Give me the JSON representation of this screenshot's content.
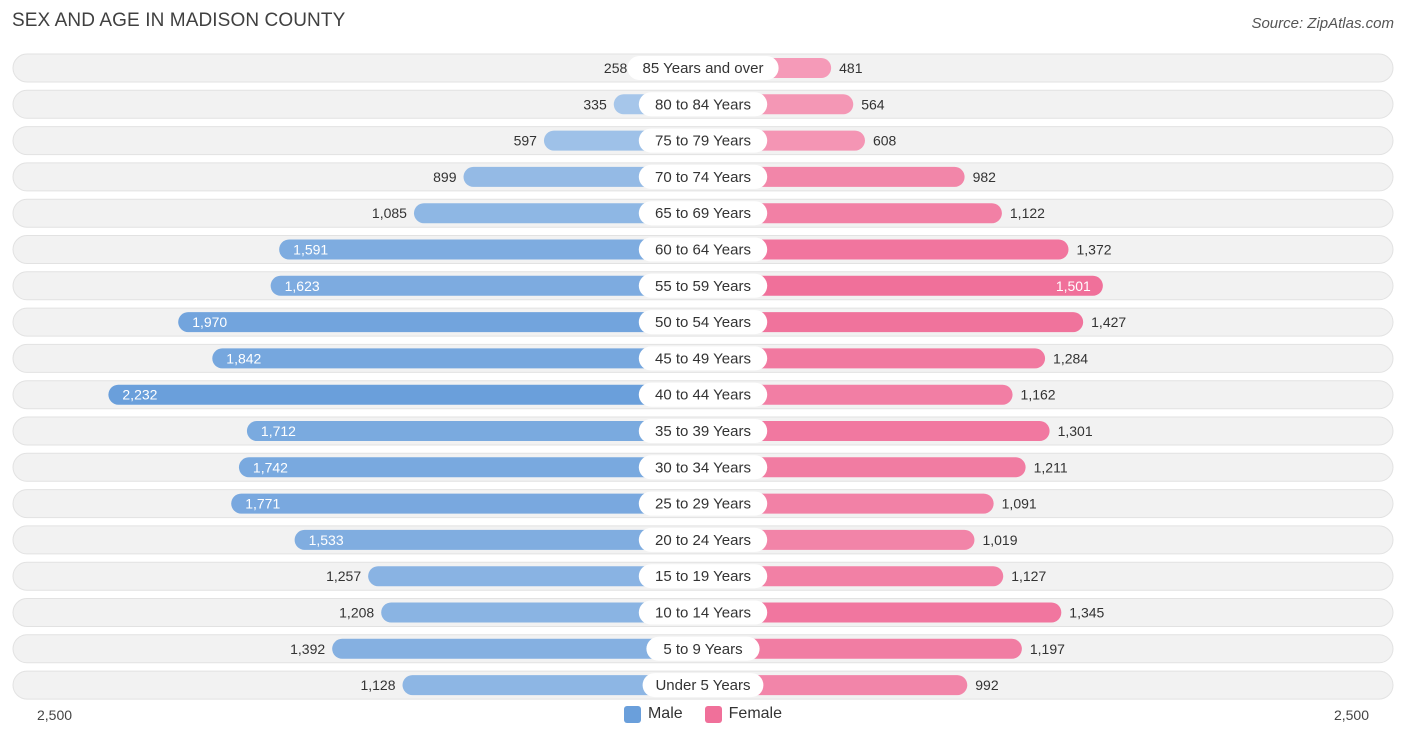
{
  "title": "SEX AND AGE IN MADISON COUNTY",
  "source": "Source: ZipAtlas.com",
  "chart_data": {
    "type": "bar",
    "orientation": "horizontal-diverging",
    "categories": [
      "85 Years and over",
      "80 to 84 Years",
      "75 to 79 Years",
      "70 to 74 Years",
      "65 to 69 Years",
      "60 to 64 Years",
      "55 to 59 Years",
      "50 to 54 Years",
      "45 to 49 Years",
      "40 to 44 Years",
      "35 to 39 Years",
      "30 to 34 Years",
      "25 to 29 Years",
      "20 to 24 Years",
      "15 to 19 Years",
      "10 to 14 Years",
      "5 to 9 Years",
      "Under 5 Years"
    ],
    "series": [
      {
        "name": "Male",
        "color": "#6a9fdb",
        "values": [
          258,
          335,
          597,
          899,
          1085,
          1591,
          1623,
          1970,
          1842,
          2232,
          1712,
          1742,
          1771,
          1533,
          1257,
          1208,
          1392,
          1128
        ],
        "labels": [
          "258",
          "335",
          "597",
          "899",
          "1,085",
          "1,591",
          "1,623",
          "1,970",
          "1,842",
          "2,232",
          "1,712",
          "1,742",
          "1,771",
          "1,533",
          "1,257",
          "1,208",
          "1,392",
          "1,128"
        ]
      },
      {
        "name": "Female",
        "color": "#f0709a",
        "values": [
          481,
          564,
          608,
          982,
          1122,
          1372,
          1501,
          1427,
          1284,
          1162,
          1301,
          1211,
          1091,
          1019,
          1127,
          1345,
          1197,
          992
        ],
        "labels": [
          "481",
          "564",
          "608",
          "982",
          "1,122",
          "1,372",
          "1,501",
          "1,427",
          "1,284",
          "1,162",
          "1,301",
          "1,211",
          "1,091",
          "1,019",
          "1,127",
          "1,345",
          "1,197",
          "992"
        ]
      }
    ],
    "xlim": [
      -2500,
      2500
    ],
    "axis_labels": {
      "left": "2,500",
      "right": "2,500"
    },
    "legend_position": "bottom-center"
  }
}
